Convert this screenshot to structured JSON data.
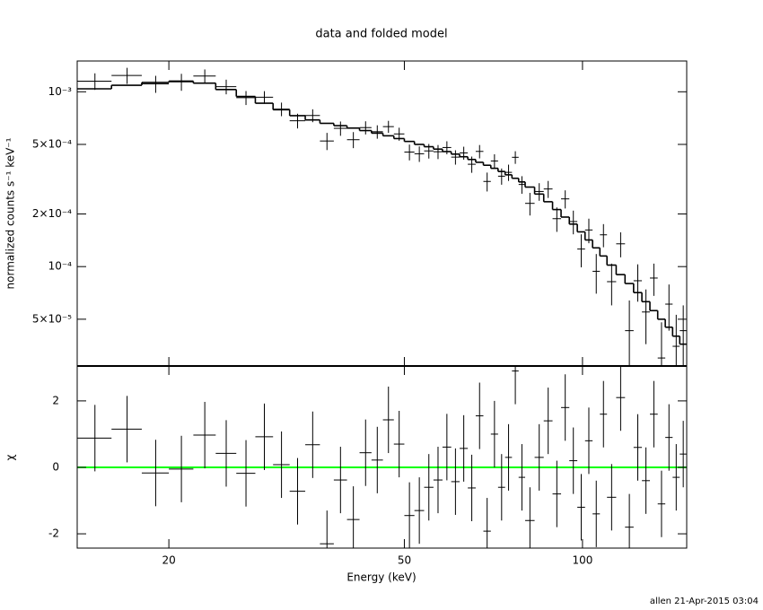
{
  "chart_data": [
    {
      "type": "errorbar",
      "title": "data and folded model",
      "ylabel": "normalized counts s⁻¹ keV⁻¹",
      "log_x": true,
      "log_y": true,
      "xlim": [
        14,
        150
      ],
      "ylim": [
        2.7e-05,
        0.0015
      ],
      "yticks": [
        {
          "value": 0.001,
          "label": "10⁻³"
        },
        {
          "value": 0.0005,
          "label": "5×10⁻⁴"
        },
        {
          "value": 0.0002,
          "label": "2×10⁻⁴"
        },
        {
          "value": 0.0001,
          "label": "10⁻⁴"
        },
        {
          "value": 5e-05,
          "label": "5×10⁻⁵"
        }
      ],
      "x": [
        15,
        17,
        19,
        21,
        23,
        25,
        27,
        29,
        31,
        33,
        35,
        37,
        39,
        41,
        43,
        45,
        47,
        49,
        51,
        53,
        55,
        57,
        59,
        61,
        63,
        65,
        67,
        69,
        71,
        73,
        75,
        77,
        79,
        81.5,
        84.5,
        87.5,
        90.5,
        93.5,
        96.5,
        99.5,
        102.5,
        105.5,
        108.5,
        112,
        116,
        120,
        124,
        128,
        132,
        136,
        140,
        144,
        148
      ],
      "xerr": [
        1,
        1,
        1,
        1,
        1,
        1,
        1,
        1,
        1,
        1,
        1,
        1,
        1,
        1,
        1,
        1,
        1,
        1,
        1,
        1,
        1,
        1,
        1,
        1,
        1,
        1,
        1,
        1,
        1,
        1,
        1,
        1,
        1,
        1.5,
        1.5,
        1.5,
        1.5,
        1.5,
        1.5,
        1.5,
        1.5,
        1.5,
        1.5,
        2,
        2,
        2,
        2,
        2,
        2,
        2,
        2,
        2,
        2
      ],
      "values": [
        0.00115,
        0.00124,
        0.00111,
        0.00114,
        0.00123,
        0.00107,
        0.000925,
        0.000931,
        0.000796,
        0.000683,
        0.000732,
        0.000523,
        0.000618,
        0.000532,
        0.000624,
        0.000591,
        0.000632,
        0.000574,
        0.000452,
        0.000442,
        0.000459,
        0.000454,
        0.00048,
        0.000423,
        0.000447,
        0.000385,
        0.000456,
        0.000307,
        0.000402,
        0.000329,
        0.000346,
        0.000422,
        0.000295,
        0.00023,
        0.000269,
        0.000278,
        0.000188,
        0.000244,
        0.000181,
        0.000126,
        0.000162,
        9.4e-05,
        0.000152,
        8.2e-05,
        0.000135,
        4.3e-05,
        8.3e-05,
        5.5e-05,
        8.6e-05,
        3e-05,
        6.1e-05,
        3.5e-05,
        4.3e-05
      ],
      "errors": [
        0.000125,
        0.000131,
        0.000124,
        0.000127,
        0.000112,
        0.000103,
        8.5e-05,
        7.7e-05,
        7.1e-05,
        6.6e-05,
        6.2e-05,
        5.9e-05,
        5.8e-05,
        5.6e-05,
        5.4e-05,
        5.2e-05,
        5e-05,
        4.9e-05,
        4.7e-05,
        4.5e-05,
        4.4e-05,
        4.2e-05,
        4.1e-05,
        4e-05,
        3.8e-05,
        4.1e-05,
        4e-05,
        3.8e-05,
        3.7e-05,
        3.5e-05,
        3.7e-05,
        3.5e-05,
        3.4e-05,
        3.4e-05,
        3.1e-05,
        3.1e-05,
        3e-05,
        2.9e-05,
        2.8e-05,
        2.7e-05,
        2.6e-05,
        2.4e-05,
        2.3e-05,
        2.2e-05,
        2.2e-05,
        2.1e-05,
        2e-05,
        1.9e-05,
        1.8e-05,
        1.8e-05,
        1.8e-05,
        1.8e-05,
        1.7e-05
      ],
      "model": [
        0.00104,
        0.00109,
        0.00113,
        0.00115,
        0.00112,
        0.00103,
        0.00094,
        0.00086,
        0.00079,
        0.00073,
        0.00069,
        0.00066,
        0.00064,
        0.00062,
        0.0006,
        0.00058,
        0.00056,
        0.00054,
        0.00052,
        0.0005,
        0.000485,
        0.00047,
        0.000455,
        0.00044,
        0.000425,
        0.00041,
        0.000395,
        0.00038,
        0.000365,
        0.00035,
        0.000335,
        0.00032,
        0.000305,
        0.000285,
        0.00026,
        0.000235,
        0.000212,
        0.000192,
        0.000175,
        0.000158,
        0.000142,
        0.000128,
        0.000115,
        0.000102,
        9e-05,
        8e-05,
        7.1e-05,
        6.3e-05,
        5.6e-05,
        5e-05,
        4.5e-05,
        4e-05,
        3.6e-05
      ],
      "color": "#000000"
    },
    {
      "type": "errorbar",
      "xlabel": "Energy (keV)",
      "ylabel": "χ",
      "xticks": [
        20,
        50,
        100
      ],
      "ylim": [
        -2.43,
        3.05
      ],
      "yticks": [
        -2,
        0,
        2
      ],
      "values": [
        0.88,
        1.15,
        -0.17,
        -0.05,
        0.97,
        0.42,
        -0.18,
        0.92,
        0.08,
        -0.72,
        0.68,
        -2.3,
        -0.38,
        -1.57,
        0.44,
        0.22,
        1.43,
        0.7,
        -1.45,
        -1.3,
        -0.6,
        -0.38,
        0.61,
        -0.43,
        0.57,
        -0.62,
        1.55,
        -1.92,
        1.0,
        -0.6,
        0.3,
        2.9,
        -0.3,
        -1.6,
        0.3,
        1.4,
        -0.8,
        1.8,
        0.2,
        -1.2,
        0.8,
        -1.4,
        1.6,
        -0.9,
        2.1,
        -1.8,
        0.6,
        -0.4,
        1.6,
        -1.1,
        0.9,
        -0.3,
        0.4
      ],
      "errors": [
        1,
        1,
        1,
        1,
        1,
        1,
        1,
        1,
        1,
        1,
        1,
        1,
        1,
        1,
        1,
        1,
        1,
        1,
        1,
        1,
        1,
        1,
        1,
        1,
        1,
        1,
        1,
        1,
        1,
        1,
        1,
        1,
        1,
        1,
        1,
        1,
        1,
        1,
        1,
        1,
        1,
        1,
        1,
        1,
        1,
        1,
        1,
        1,
        1,
        1,
        1,
        1,
        1
      ],
      "reference_line": {
        "value": 0,
        "color": "#00ff00"
      },
      "color": "#000000"
    }
  ],
  "footer": "allen 21-Apr-2015 03:04"
}
